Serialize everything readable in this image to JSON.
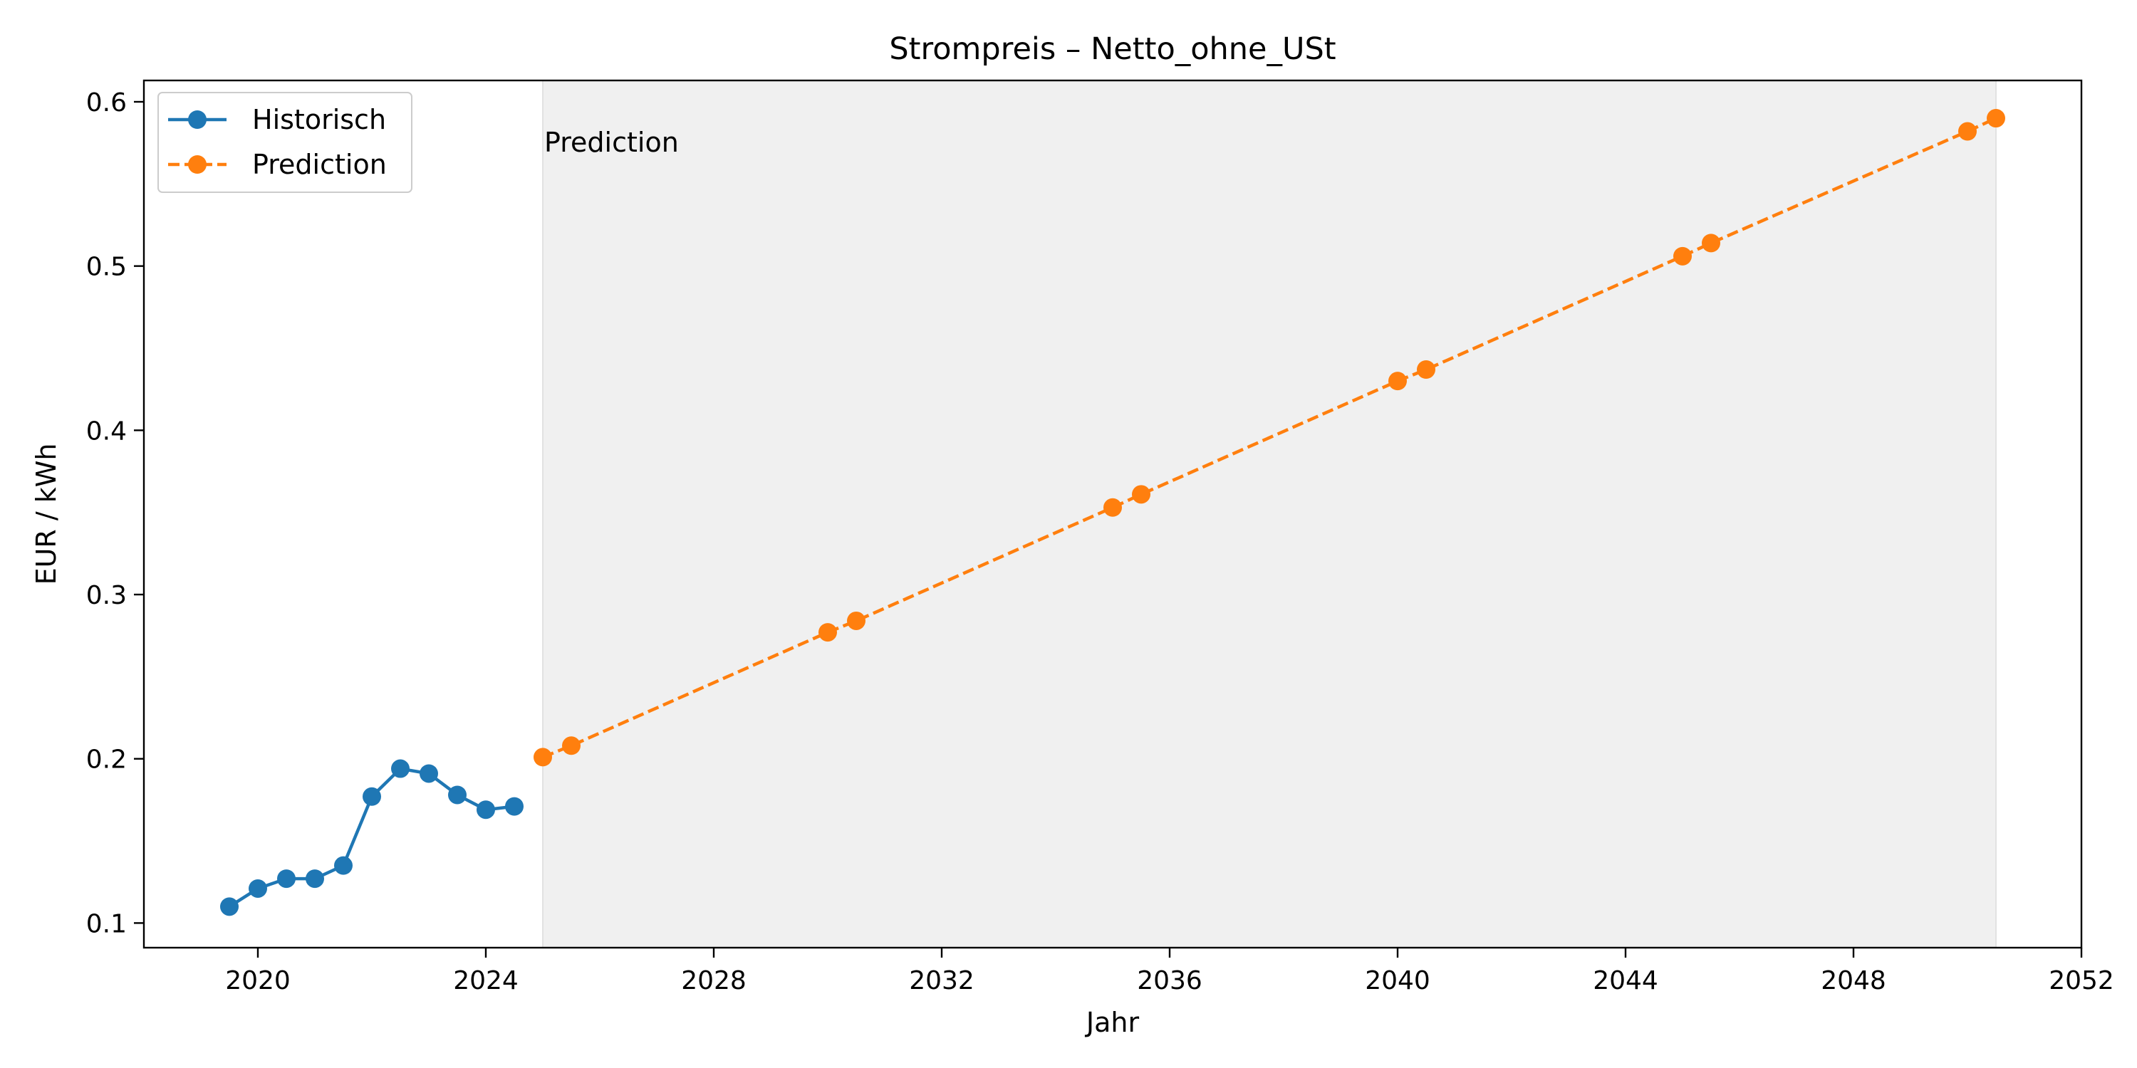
{
  "chart_data": {
    "type": "line",
    "title": "Strompreis – Netto_ohne_USt",
    "xlabel": "Jahr",
    "ylabel": "EUR / kWh",
    "xlim": [
      2018.0,
      2052.0
    ],
    "ylim": [
      0.085,
      0.613
    ],
    "x_ticks": [
      2020,
      2024,
      2028,
      2032,
      2036,
      2040,
      2044,
      2048,
      2052
    ],
    "y_ticks": [
      0.1,
      0.2,
      0.3,
      0.4,
      0.5,
      0.6
    ],
    "grid": false,
    "legend_position": "top-left",
    "shaded_region": {
      "x_start": 2025.0,
      "x_end": 2050.5,
      "color": "#f0f0f0",
      "label": "Prediction"
    },
    "series": [
      {
        "name": "Historisch",
        "color": "#1f77b4",
        "line_style": "solid",
        "x": [
          2019.5,
          2020.0,
          2020.5,
          2021.0,
          2021.5,
          2022.0,
          2022.5,
          2023.0,
          2023.5,
          2024.0,
          2024.5
        ],
        "y": [
          0.11,
          0.121,
          0.127,
          0.127,
          0.135,
          0.177,
          0.194,
          0.191,
          0.178,
          0.169,
          0.171
        ]
      },
      {
        "name": "Prediction",
        "color": "#ff7f0e",
        "line_style": "dashed",
        "x": [
          2025.0,
          2025.5,
          2030.0,
          2030.5,
          2035.0,
          2035.5,
          2040.0,
          2040.5,
          2045.0,
          2045.5,
          2050.0,
          2050.5
        ],
        "y": [
          0.201,
          0.208,
          0.277,
          0.284,
          0.353,
          0.361,
          0.43,
          0.437,
          0.506,
          0.514,
          0.582,
          0.59
        ]
      }
    ]
  }
}
